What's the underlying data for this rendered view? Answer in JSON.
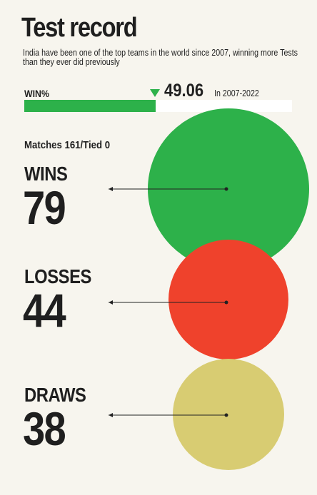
{
  "title": "Test record",
  "subtitle": "India have been one of the top teams in the world since 2007, winning more Tests than they ever did previously",
  "win_bar": {
    "label": "WIN%",
    "value": 49.06,
    "value_text": "49.06",
    "period": "In 2007-2022",
    "color": "#2db14a",
    "track_color": "#ffffff"
  },
  "matches_text": "Matches 161/Tied 0",
  "chart_data": {
    "type": "bubble",
    "title": "",
    "categories": [
      "WINS",
      "LOSSES",
      "DRAWS"
    ],
    "values": [
      79,
      44,
      38
    ],
    "colors": [
      "#2db14a",
      "#ef422c",
      "#d8cc72"
    ],
    "total_matches": 161,
    "tied": 0
  },
  "labels": {
    "wins": "WINS",
    "wins_value": "79",
    "losses": "LOSSES",
    "losses_value": "44",
    "draws": "DRAWS",
    "draws_value": "38"
  }
}
